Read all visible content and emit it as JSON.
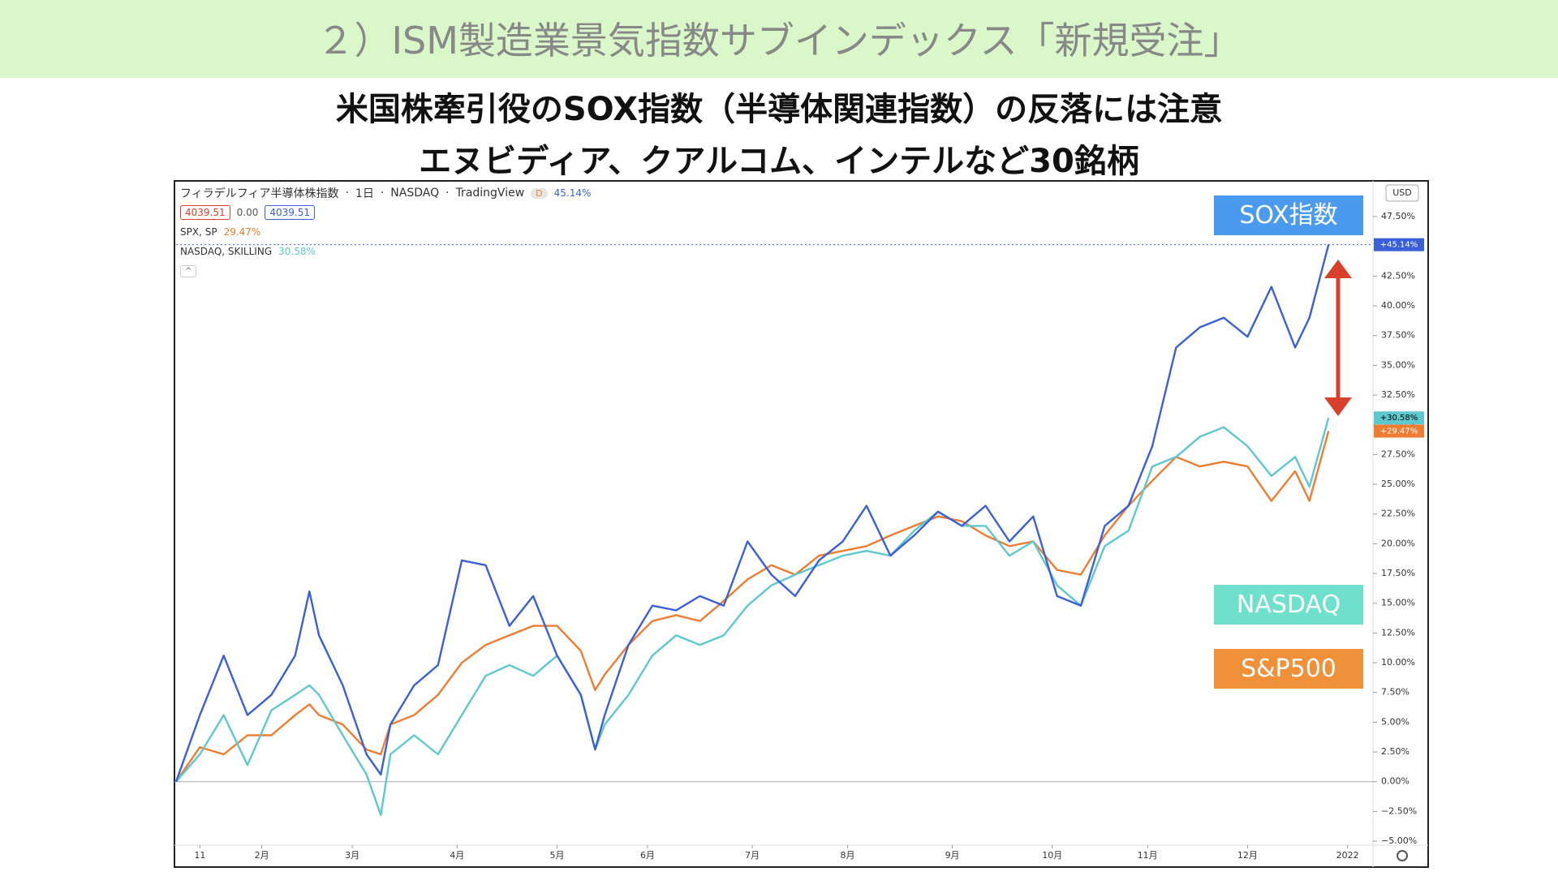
{
  "slide": {
    "banner": "２）ISM製造業景気指数サブインデックス「新規受注」",
    "headline": [
      "米国株牽引役のSOX指数（半導体関連指数）の反落には注意",
      "エヌビディア、クアルコム、インテルなど30銘柄"
    ]
  },
  "chart_data": {
    "type": "line",
    "header": {
      "symbol": "フィラデルフィア半導体株指数",
      "interval": "1日",
      "exchange": "NASDAQ",
      "source": "TradingView",
      "badge": "D",
      "change": "45.14%",
      "bid": "4039.51",
      "spread": "0.00",
      "ask": "4039.51",
      "currency": "USD",
      "compare": [
        {
          "name": "SPX, SP",
          "value": "29.47%",
          "color": "#ee7d31"
        },
        {
          "name": "NASDAQ, SKILLING",
          "value": "30.58%",
          "color": "#5ec8cf"
        }
      ]
    },
    "x": [
      0,
      5,
      10,
      15,
      20,
      25,
      28,
      30,
      35,
      40,
      43,
      45,
      50,
      55,
      60,
      65,
      70,
      75,
      80,
      85,
      88,
      90,
      95,
      100,
      105,
      110,
      115,
      120,
      125,
      130,
      135,
      140,
      145,
      150,
      155,
      160,
      165,
      170,
      175,
      180,
      185,
      190,
      195,
      200,
      205,
      210,
      215,
      220,
      225,
      230,
      235,
      238,
      242
    ],
    "xlim": [
      0,
      251
    ],
    "xticks": [
      {
        "value": 5,
        "label": "11"
      },
      {
        "value": 18,
        "label": "2月"
      },
      {
        "value": 37,
        "label": "3月"
      },
      {
        "value": 59,
        "label": "4月"
      },
      {
        "value": 80,
        "label": "5月"
      },
      {
        "value": 99,
        "label": "6月"
      },
      {
        "value": 121,
        "label": "7月"
      },
      {
        "value": 141,
        "label": "8月"
      },
      {
        "value": 163,
        "label": "9月"
      },
      {
        "value": 184,
        "label": "10月"
      },
      {
        "value": 204,
        "label": "11月"
      },
      {
        "value": 225,
        "label": "12月"
      },
      {
        "value": 246,
        "label": "2022"
      }
    ],
    "ylim": [
      -5.2,
      50.3
    ],
    "yticks": [
      {
        "value": -5,
        "label": "−5.00%"
      },
      {
        "value": -2.5,
        "label": "−2.50%"
      },
      {
        "value": 0,
        "label": "0.00%"
      },
      {
        "value": 2.5,
        "label": "2.50%"
      },
      {
        "value": 5,
        "label": "5.00%"
      },
      {
        "value": 7.5,
        "label": "7.50%"
      },
      {
        "value": 10,
        "label": "10.00%"
      },
      {
        "value": 12.5,
        "label": "12.50%"
      },
      {
        "value": 15,
        "label": "15.00%"
      },
      {
        "value": 17.5,
        "label": "17.50%"
      },
      {
        "value": 20,
        "label": "20.00%"
      },
      {
        "value": 22.5,
        "label": "22.50%"
      },
      {
        "value": 25,
        "label": "25.00%"
      },
      {
        "value": 27.5,
        "label": "27.50%"
      },
      {
        "value": 30,
        "label": "30.00%"
      },
      {
        "value": 32.5,
        "label": "32.50%"
      },
      {
        "value": 35,
        "label": "35.00%"
      },
      {
        "value": 37.5,
        "label": "37.50%"
      },
      {
        "value": 40,
        "label": "40.00%"
      },
      {
        "value": 42.5,
        "label": "42.50%"
      },
      {
        "value": 47.5,
        "label": "47.50%"
      }
    ],
    "grid": false,
    "series": [
      {
        "name": "SOX指数",
        "color": "#3a5fd9",
        "label_color": "#4a9af0",
        "last_label": "+45.14%",
        "values": [
          0,
          5.6,
          10.6,
          5.6,
          7.3,
          10.6,
          16,
          12.3,
          8.1,
          2.3,
          0.6,
          4.8,
          8.1,
          9.8,
          18.6,
          18.2,
          13.1,
          15.6,
          10.6,
          7.3,
          2.7,
          5.6,
          11.5,
          14.8,
          14.4,
          15.6,
          14.8,
          20.2,
          17.4,
          15.6,
          18.6,
          20.2,
          23.2,
          19,
          20.7,
          22.7,
          21.5,
          23.2,
          20.2,
          22.3,
          15.6,
          14.8,
          21.5,
          23.2,
          28.2,
          36.5,
          38.2,
          39,
          37.4,
          41.6,
          36.5,
          39,
          45.14
        ]
      },
      {
        "name": "NASDAQ",
        "color": "#5ec8cf",
        "label_color": "#6ee0cc",
        "last_label": "+30.58%",
        "values": [
          0,
          2.3,
          5.6,
          1.4,
          6,
          7.3,
          8.1,
          7.3,
          3.9,
          0.6,
          -2.8,
          2.3,
          3.9,
          2.3,
          5.6,
          8.9,
          9.8,
          8.9,
          10.6,
          7.3,
          2.7,
          4.8,
          7.3,
          10.6,
          12.3,
          11.5,
          12.3,
          14.8,
          16.5,
          17.4,
          18.2,
          19,
          19.4,
          19,
          21.1,
          22.7,
          21.5,
          21.5,
          19,
          20.2,
          16.5,
          14.8,
          19.8,
          21.1,
          26.5,
          27.3,
          29,
          29.8,
          28.2,
          25.7,
          27.3,
          24.8,
          30.58
        ]
      },
      {
        "name": "S&P500",
        "color": "#ee7d31",
        "label_color": "#f0913a",
        "last_label": "+29.47%",
        "values": [
          0,
          2.9,
          2.3,
          3.9,
          3.9,
          5.6,
          6.5,
          5.6,
          4.8,
          2.7,
          2.3,
          4.8,
          5.6,
          7.3,
          10,
          11.5,
          12.3,
          13.1,
          13.1,
          11,
          7.7,
          9,
          11.5,
          13.5,
          14,
          13.5,
          15.2,
          17,
          18.2,
          17.4,
          19,
          19.4,
          19.8,
          20.7,
          21.5,
          22.3,
          21.9,
          20.7,
          19.8,
          20.2,
          17.8,
          17.4,
          20.7,
          23.2,
          25.3,
          27.3,
          26.5,
          26.9,
          26.5,
          23.6,
          26.1,
          23.6,
          29.47
        ]
      }
    ]
  }
}
